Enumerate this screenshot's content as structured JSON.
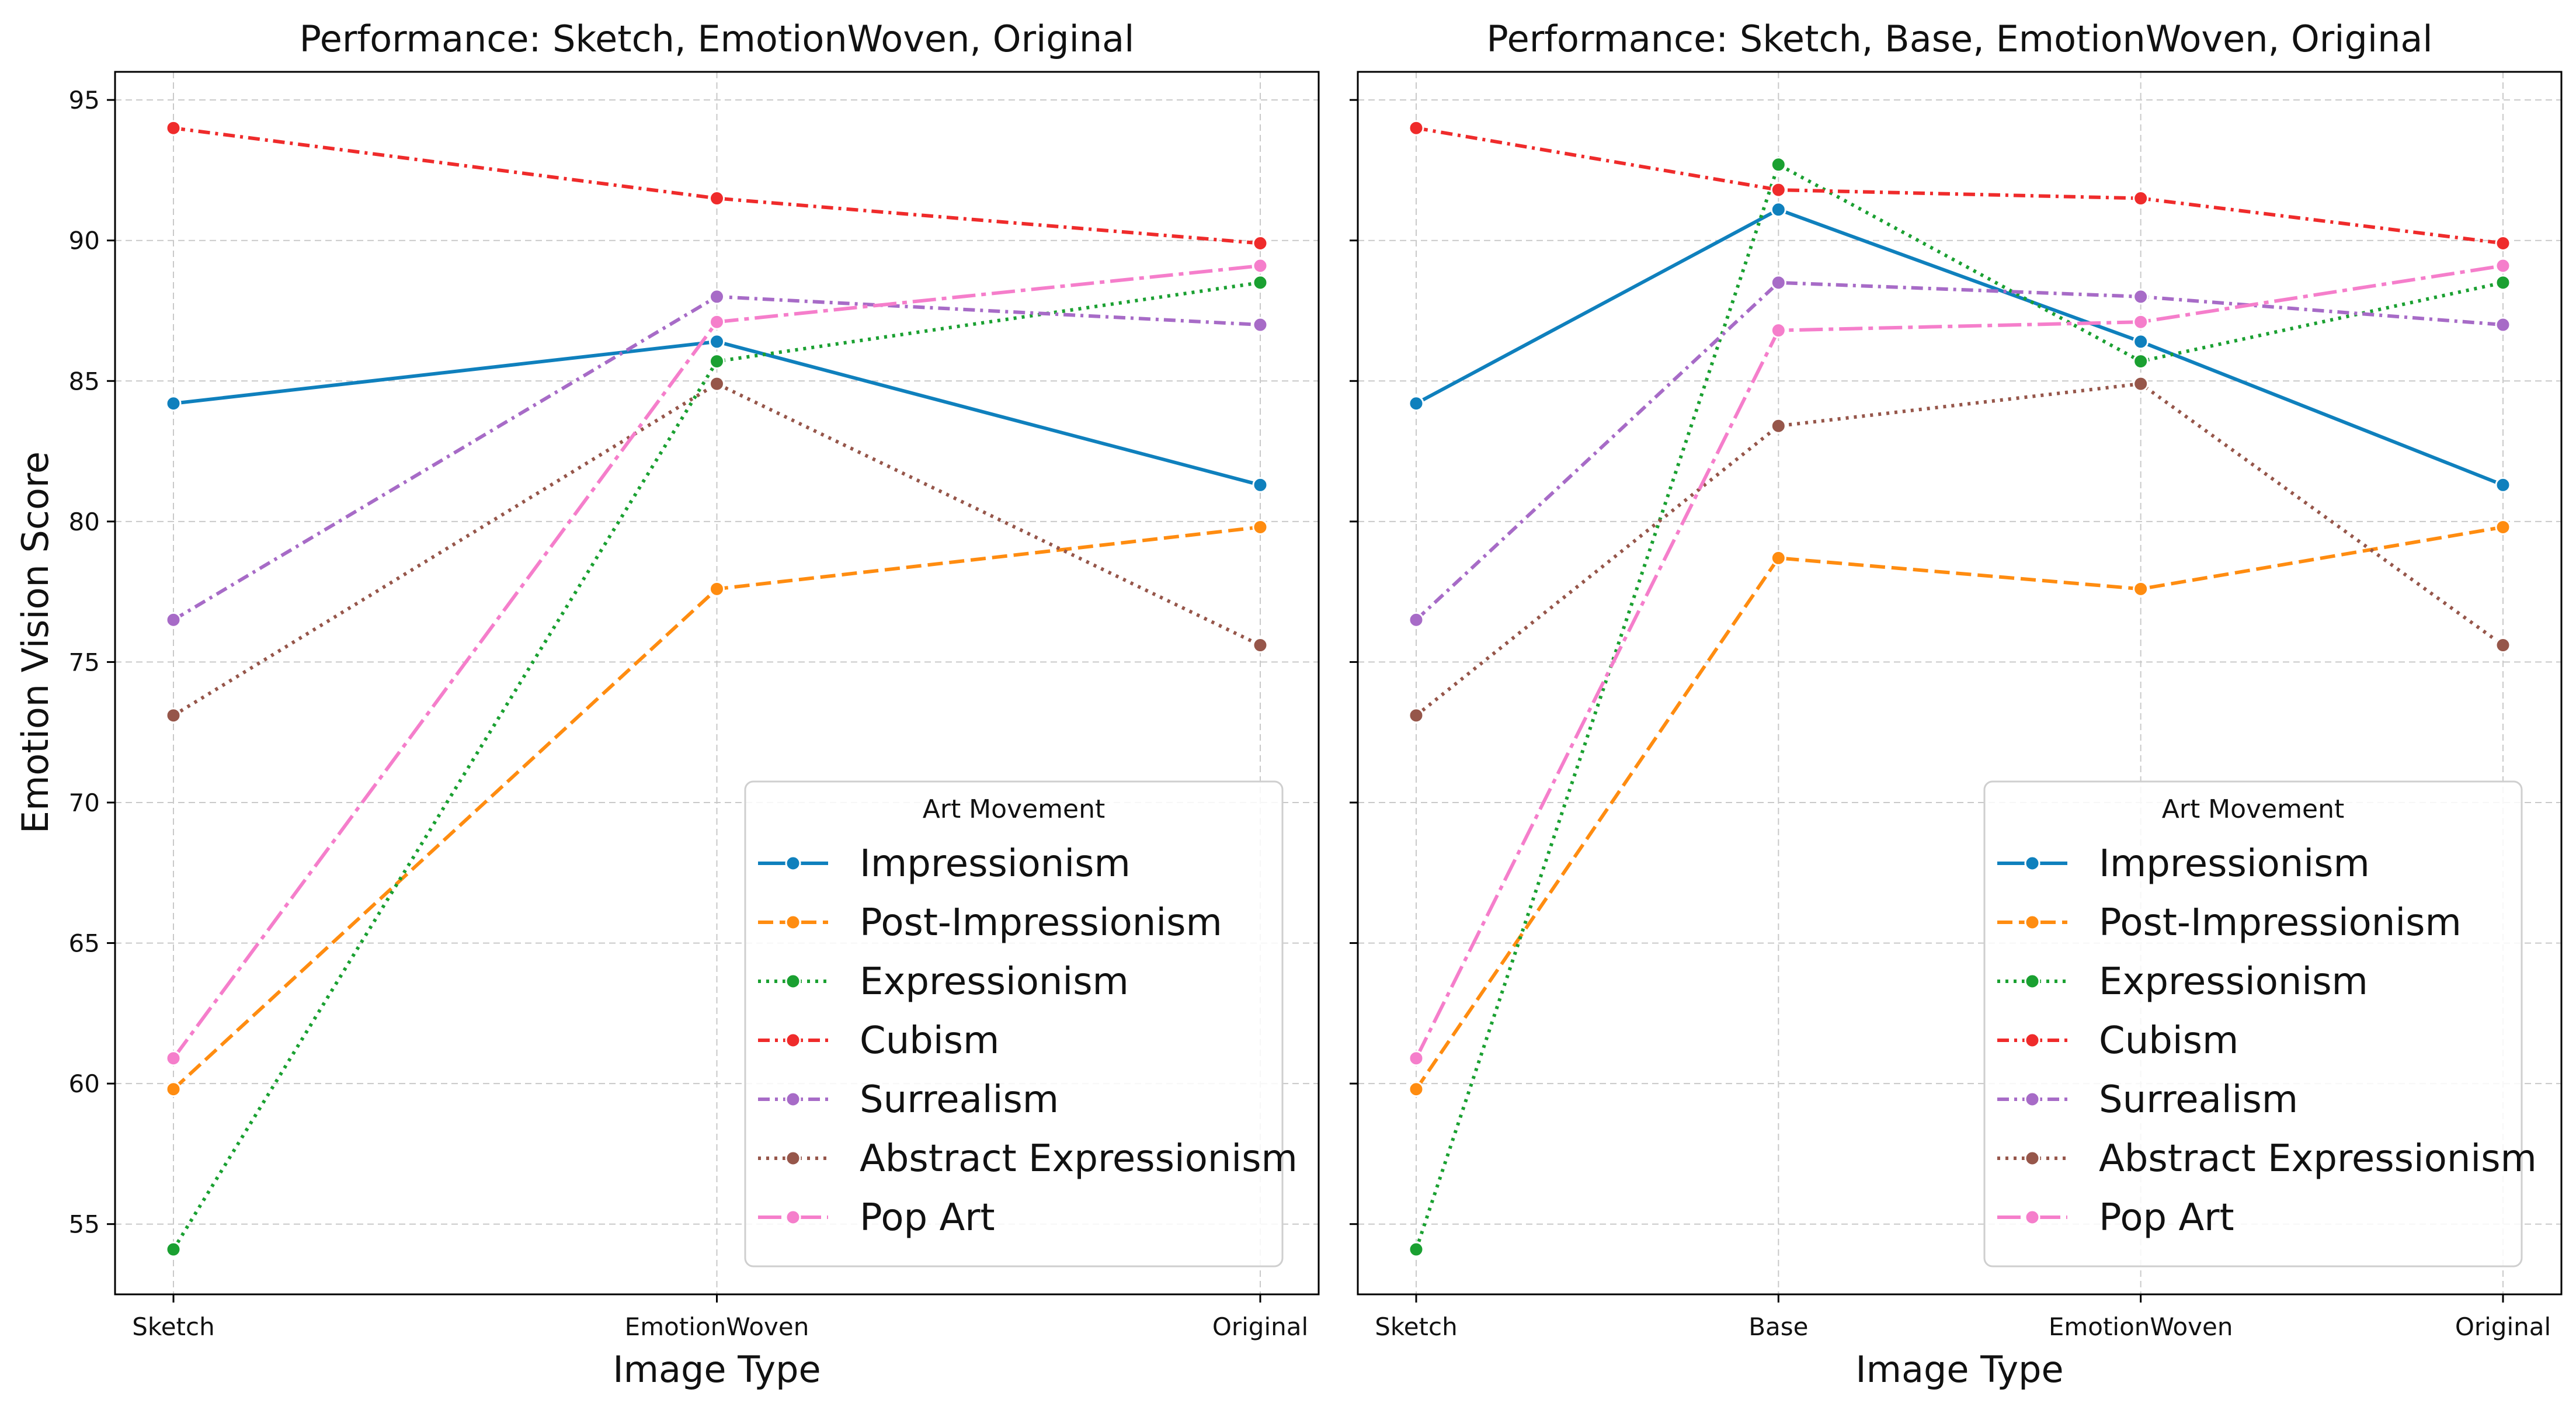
{
  "chart_data": [
    {
      "type": "line",
      "title": "Performance: Sketch, EmotionWoven, Original",
      "xlabel": "Image Type",
      "ylabel": "Emotion Vision Score",
      "categories": [
        "Sketch",
        "EmotionWoven",
        "Original"
      ],
      "ylim": [
        52.5,
        96
      ],
      "yticks": [
        55,
        60,
        65,
        70,
        75,
        80,
        85,
        90,
        95
      ],
      "grid": true,
      "legend": {
        "title": "Art Movement",
        "position": "lower-right"
      },
      "series": [
        {
          "name": "Impressionism",
          "values": [
            84.2,
            86.4,
            81.3
          ],
          "color": "#0f80bd",
          "dash": "solid"
        },
        {
          "name": "Post-Impressionism",
          "values": [
            59.8,
            77.6,
            79.8
          ],
          "color": "#ff8c10",
          "dash": "dashed"
        },
        {
          "name": "Expressionism",
          "values": [
            54.1,
            85.7,
            88.5
          ],
          "color": "#1aa031",
          "dash": "dotted"
        },
        {
          "name": "Cubism",
          "values": [
            94.0,
            91.5,
            89.9
          ],
          "color": "#ef2b2b",
          "dash": "dashdot"
        },
        {
          "name": "Surrealism",
          "values": [
            76.5,
            88.0,
            87.0
          ],
          "color": "#a76bc7",
          "dash": "dashdot"
        },
        {
          "name": "Abstract Expressionism",
          "values": [
            73.1,
            84.9,
            75.6
          ],
          "color": "#96564a",
          "dash": "dotted"
        },
        {
          "name": "Pop Art",
          "values": [
            60.9,
            87.1,
            89.1
          ],
          "color": "#f57ecb",
          "dash": "longdash"
        }
      ]
    },
    {
      "type": "line",
      "title": "Performance: Sketch, Base, EmotionWoven, Original",
      "xlabel": "Image Type",
      "ylabel": "",
      "categories": [
        "Sketch",
        "Base",
        "EmotionWoven",
        "Original"
      ],
      "ylim": [
        52.5,
        96
      ],
      "yticks": [
        55,
        60,
        65,
        70,
        75,
        80,
        85,
        90,
        95
      ],
      "grid": true,
      "legend": {
        "title": "Art Movement",
        "position": "lower-right"
      },
      "series": [
        {
          "name": "Impressionism",
          "values": [
            84.2,
            91.1,
            86.4,
            81.3
          ],
          "color": "#0f80bd",
          "dash": "solid"
        },
        {
          "name": "Post-Impressionism",
          "values": [
            59.8,
            78.7,
            77.6,
            79.8
          ],
          "color": "#ff8c10",
          "dash": "dashed"
        },
        {
          "name": "Expressionism",
          "values": [
            54.1,
            92.7,
            85.7,
            88.5
          ],
          "color": "#1aa031",
          "dash": "dotted"
        },
        {
          "name": "Cubism",
          "values": [
            94.0,
            91.8,
            91.5,
            89.9
          ],
          "color": "#ef2b2b",
          "dash": "dashdot"
        },
        {
          "name": "Surrealism",
          "values": [
            76.5,
            88.5,
            88.0,
            87.0
          ],
          "color": "#a76bc7",
          "dash": "dashdot"
        },
        {
          "name": "Abstract Expressionism",
          "values": [
            73.1,
            83.4,
            84.9,
            75.6
          ],
          "color": "#96564a",
          "dash": "dotted"
        },
        {
          "name": "Pop Art",
          "values": [
            60.9,
            86.8,
            87.1,
            89.1
          ],
          "color": "#f57ecb",
          "dash": "longdash"
        }
      ]
    }
  ]
}
